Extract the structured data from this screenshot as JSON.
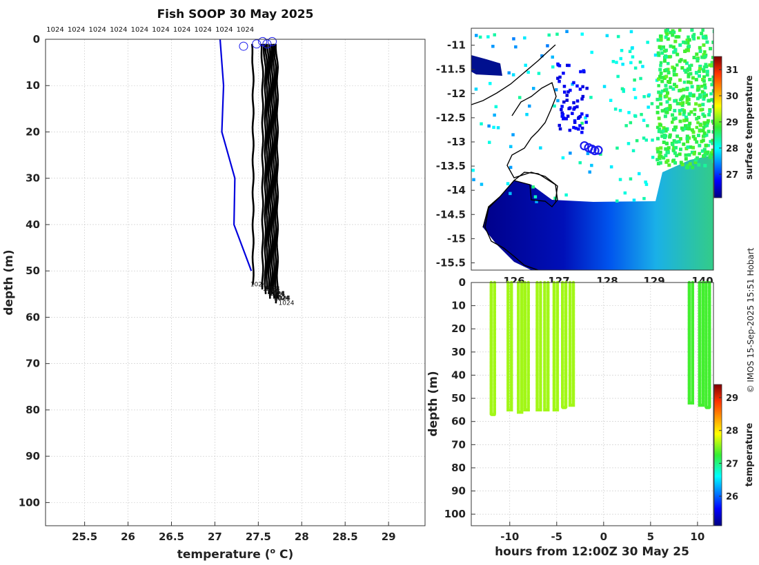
{
  "chart_data": [
    {
      "type": "line",
      "title": "Fish SOOP 30 May 2025",
      "xlabel": "temperature (",
      "xlabel_sup": "o",
      "xlabel_tail": " C)",
      "ylabel": "depth (m)",
      "xlim": [
        25.05,
        29.42
      ],
      "ylim": [
        105,
        0
      ],
      "x_ticks": [
        "25.5",
        "26",
        "26.5",
        "27",
        "27.5",
        "28",
        "28.5",
        "29"
      ],
      "x_tick_values": [
        25.5,
        26,
        26.5,
        27,
        27.5,
        28,
        28.5,
        29
      ],
      "y_ticks": [
        "0",
        "10",
        "20",
        "30",
        "40",
        "50",
        "60",
        "70",
        "80",
        "90",
        "100"
      ],
      "y_tick_values": [
        0,
        10,
        20,
        30,
        40,
        50,
        60,
        70,
        80,
        90,
        100
      ],
      "top_labels": [
        "1024",
        "1024",
        "1024",
        "1024",
        "1024",
        "1024",
        "1024",
        "1024",
        "1024",
        "1024"
      ],
      "reference_profile": {
        "color": "#0000dd",
        "points": [
          [
            27.06,
            0
          ],
          [
            27.1,
            10
          ],
          [
            27.08,
            20
          ],
          [
            27.23,
            30
          ],
          [
            27.22,
            40
          ],
          [
            27.42,
            50
          ]
        ]
      },
      "profiles": [
        {
          "name": "1024",
          "temperature": 27.44,
          "max_depth": 53
        },
        {
          "name": "1024",
          "temperature": 27.55,
          "max_depth": 54
        },
        {
          "name": "1024",
          "temperature": 27.58,
          "max_depth": 55
        },
        {
          "name": "1024",
          "temperature": 27.6,
          "max_depth": 54
        },
        {
          "name": "1024",
          "temperature": 27.62,
          "max_depth": 55
        },
        {
          "name": "1024",
          "temperature": 27.64,
          "max_depth": 56
        },
        {
          "name": "1024",
          "temperature": 27.66,
          "max_depth": 55
        },
        {
          "name": "1024",
          "temperature": 27.68,
          "max_depth": 56
        },
        {
          "name": "1024",
          "temperature": 27.7,
          "max_depth": 57
        },
        {
          "name": "1024",
          "temperature": 27.72,
          "max_depth": 56
        }
      ],
      "surface_markers": [
        [
          27.33,
          1.5
        ],
        [
          27.48,
          1
        ],
        [
          27.55,
          0.5
        ],
        [
          27.6,
          1
        ],
        [
          27.66,
          0.5
        ]
      ]
    },
    {
      "type": "heatmap",
      "title": "",
      "colorbar_label": "surface temperature",
      "x_ticks": [
        "126",
        "127",
        "128",
        "129",
        "140"
      ],
      "y_ticks": [
        "-11",
        "-11.5",
        "-12",
        "-12.5",
        "-13",
        "-13.5",
        "-14",
        "-14.5",
        "-15",
        "-15.5"
      ],
      "y_tick_values": [
        -11,
        -11.5,
        -12,
        -12.5,
        -13,
        -13.5,
        -14,
        -14.5,
        -15,
        -15.5
      ],
      "ylim": [
        -10.65,
        -15.65
      ],
      "colorbar_ticks": [
        "31",
        "30",
        "29",
        "28",
        "27"
      ],
      "colorbar_values": [
        31,
        30,
        29,
        28,
        27
      ],
      "colorbar_range": [
        26.1,
        31.5
      ],
      "track_markers": [
        [
          -13.08
        ],
        [
          -13.12
        ],
        [
          -13.15
        ],
        [
          -13.18
        ],
        [
          -13.17
        ]
      ]
    },
    {
      "type": "scatter",
      "xlabel": "hours from 12:00Z 30 May 25",
      "ylabel": "depth (m)",
      "xlim": [
        -14.1,
        11.7
      ],
      "ylim": [
        105,
        0
      ],
      "x_ticks": [
        "-10",
        "-5",
        "0",
        "5",
        "10"
      ],
      "x_tick_values": [
        -10,
        -5,
        0,
        5,
        10
      ],
      "y_ticks": [
        "0",
        "10",
        "20",
        "30",
        "40",
        "50",
        "60",
        "70",
        "80",
        "90",
        "100"
      ],
      "y_tick_values": [
        0,
        10,
        20,
        30,
        40,
        50,
        60,
        70,
        80,
        90,
        100
      ],
      "colorbar_label": "temperature",
      "colorbar_ticks": [
        "29",
        "28",
        "27",
        "26"
      ],
      "colorbar_values": [
        29,
        28,
        27,
        26
      ],
      "colorbar_range": [
        25.1,
        29.4
      ],
      "casts": [
        {
          "hours": -11.8,
          "max_depth": 57,
          "temperature": 27.6
        },
        {
          "hours": -10.0,
          "max_depth": 55,
          "temperature": 27.6
        },
        {
          "hours": -8.9,
          "max_depth": 56,
          "temperature": 27.6
        },
        {
          "hours": -8.2,
          "max_depth": 55,
          "temperature": 27.6
        },
        {
          "hours": -6.9,
          "max_depth": 55,
          "temperature": 27.6
        },
        {
          "hours": -6.1,
          "max_depth": 55,
          "temperature": 27.6
        },
        {
          "hours": -5.1,
          "max_depth": 55,
          "temperature": 27.6
        },
        {
          "hours": -4.2,
          "max_depth": 54,
          "temperature": 27.6
        },
        {
          "hours": -3.4,
          "max_depth": 53,
          "temperature": 27.6
        },
        {
          "hours": 9.3,
          "max_depth": 52,
          "temperature": 27.3
        },
        {
          "hours": 10.4,
          "max_depth": 53,
          "temperature": 27.3
        },
        {
          "hours": 11.1,
          "max_depth": 54,
          "temperature": 27.3
        }
      ]
    }
  ],
  "credit": "© IMOS 15-Sep-2025 15:51 Hobart",
  "colors": {
    "profile": "#000000",
    "reference": "#0000dd",
    "marker": "#1a1aee",
    "land": "#ffffff",
    "grid": "#c8c8c8"
  }
}
